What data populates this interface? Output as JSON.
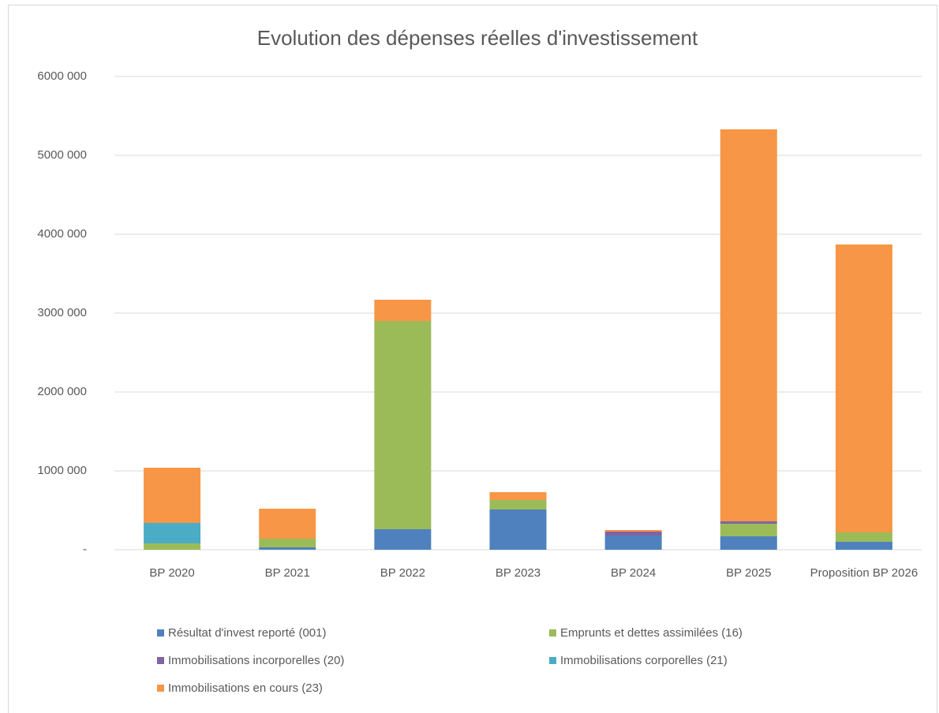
{
  "chart_data": {
    "type": "bar",
    "stacked": true,
    "title": "Evolution des dépenses réelles d'investissement",
    "categories": [
      "BP 2020",
      "BP 2021",
      "BP 2022",
      "BP 2023",
      "BP 2024",
      "BP 2025",
      "Proposition BP 2026"
    ],
    "series": [
      {
        "name": "Résultat d'invest reporté (001)",
        "color": "#4e81bd",
        "values": [
          0,
          30000,
          260000,
          510000,
          180000,
          170000,
          100000
        ]
      },
      {
        "name": "Emprunts et dettes assimilées (16)",
        "color": "#9bbb59",
        "values": [
          80000,
          110000,
          2640000,
          120000,
          0,
          160000,
          120000
        ]
      },
      {
        "name": "Immobilisations incorporelles (20)",
        "color": "#8064a2",
        "values": [
          0,
          0,
          0,
          0,
          50000,
          30000,
          0
        ]
      },
      {
        "name": "Immobilisations corporelles (21)",
        "color": "#4bacc6",
        "values": [
          260000,
          0,
          0,
          0,
          0,
          0,
          0
        ]
      },
      {
        "name": "Immobilisations en cours (23)",
        "color": "#f79646",
        "values": [
          700000,
          380000,
          270000,
          100000,
          20000,
          4970000,
          3650000
        ]
      }
    ],
    "ylim": [
      0,
      6000000
    ],
    "yticks": [
      {
        "value": 0,
        "label": "-"
      },
      {
        "value": 1000000,
        "label": "1000 000"
      },
      {
        "value": 2000000,
        "label": "2000 000"
      },
      {
        "value": 3000000,
        "label": "3000 000"
      },
      {
        "value": 4000000,
        "label": "4000 000"
      },
      {
        "value": 5000000,
        "label": "5000 000"
      },
      {
        "value": 6000000,
        "label": "6000 000"
      }
    ],
    "grid": true,
    "legend": "bottom"
  }
}
